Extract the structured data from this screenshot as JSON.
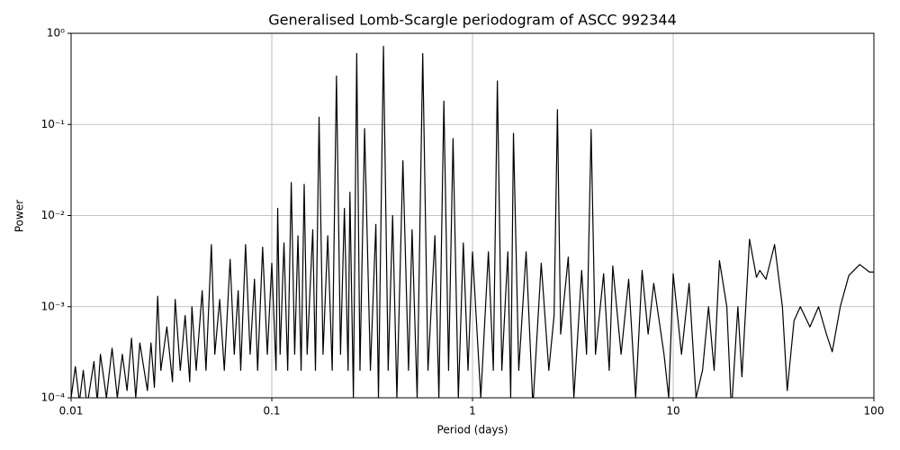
{
  "chart_data": {
    "type": "line",
    "title": "Generalised Lomb-Scargle periodogram of ASCC 992344",
    "xlabel": "Period (days)",
    "ylabel": "Power",
    "xscale": "log",
    "yscale": "log",
    "grid": true,
    "xlim": [
      0.01,
      100
    ],
    "ylim": [
      0.0001,
      1
    ],
    "xticks": [
      0.01,
      0.1,
      1,
      10,
      100
    ],
    "yticks": [
      {
        "value": 0.0001,
        "label": "10⁻⁴"
      },
      {
        "value": 0.001,
        "label": "10⁻³"
      },
      {
        "value": 0.01,
        "label": "10⁻²"
      },
      {
        "value": 0.1,
        "label": "10⁻¹"
      },
      {
        "value": 1,
        "label": "10⁰"
      }
    ],
    "series": [
      {
        "color": "#000000",
        "x": [
          0.01,
          0.0105,
          0.011,
          0.0115,
          0.012,
          0.013,
          0.0135,
          0.014,
          0.015,
          0.016,
          0.017,
          0.018,
          0.019,
          0.02,
          0.021,
          0.022,
          0.024,
          0.025,
          0.026,
          0.027,
          0.028,
          0.03,
          0.032,
          0.033,
          0.035,
          0.037,
          0.039,
          0.04,
          0.042,
          0.045,
          0.047,
          0.05,
          0.052,
          0.055,
          0.058,
          0.062,
          0.065,
          0.068,
          0.07,
          0.074,
          0.078,
          0.082,
          0.085,
          0.09,
          0.095,
          0.1,
          0.105,
          0.107,
          0.11,
          0.115,
          0.12,
          0.125,
          0.13,
          0.135,
          0.14,
          0.145,
          0.15,
          0.16,
          0.165,
          0.172,
          0.18,
          0.19,
          0.2,
          0.21,
          0.22,
          0.23,
          0.24,
          0.245,
          0.255,
          0.265,
          0.275,
          0.29,
          0.31,
          0.33,
          0.34,
          0.36,
          0.38,
          0.4,
          0.42,
          0.45,
          0.48,
          0.5,
          0.53,
          0.565,
          0.6,
          0.65,
          0.68,
          0.72,
          0.76,
          0.8,
          0.85,
          0.9,
          0.95,
          1,
          1.1,
          1.2,
          1.27,
          1.33,
          1.4,
          1.5,
          1.55,
          1.6,
          1.7,
          1.85,
          2,
          2.2,
          2.4,
          2.55,
          2.65,
          2.75,
          3,
          3.2,
          3.5,
          3.7,
          3.9,
          4.1,
          4.5,
          4.8,
          5,
          5.5,
          6,
          6.5,
          7,
          7.5,
          8,
          9,
          9.5,
          10,
          11,
          12,
          13,
          14,
          15,
          16,
          17,
          18.5,
          19.5,
          21,
          22,
          24,
          26,
          27,
          29,
          32,
          35,
          37,
          40,
          43,
          48,
          53,
          58,
          62,
          68,
          75,
          85,
          95,
          100
        ],
        "values": [
          0.0001,
          0.00022,
          9e-05,
          0.0002,
          8e-05,
          0.00025,
          9e-05,
          0.0003,
          0.0001,
          0.00035,
          0.0001,
          0.0003,
          0.00012,
          0.00045,
          0.0001,
          0.0004,
          0.00012,
          0.0004,
          0.00013,
          0.0013,
          0.0002,
          0.0006,
          0.00015,
          0.0012,
          0.0002,
          0.0008,
          0.00015,
          0.001,
          0.0002,
          0.0015,
          0.0002,
          0.0048,
          0.0003,
          0.0012,
          0.0002,
          0.0033,
          0.0003,
          0.0015,
          0.0002,
          0.0048,
          0.0003,
          0.002,
          0.0002,
          0.0045,
          0.0003,
          0.003,
          0.0002,
          0.012,
          0.0003,
          0.005,
          0.0002,
          0.023,
          0.0003,
          0.006,
          0.0002,
          0.022,
          0.0003,
          0.007,
          0.0002,
          0.12,
          0.0003,
          0.006,
          0.0002,
          0.34,
          0.0003,
          0.012,
          0.0002,
          0.018,
          0.0001,
          0.6,
          0.0002,
          0.09,
          0.0002,
          0.008,
          0.0001,
          0.72,
          0.0002,
          0.01,
          0.0001,
          0.04,
          0.0002,
          0.007,
          0.0001,
          0.6,
          0.0002,
          0.006,
          0.0001,
          0.18,
          0.0002,
          0.07,
          0.0001,
          0.005,
          0.0002,
          0.004,
          0.0001,
          0.004,
          0.0002,
          0.3,
          0.0002,
          0.004,
          0.0001,
          0.08,
          0.0002,
          0.004,
          8e-05,
          0.003,
          0.0002,
          0.0008,
          0.145,
          0.0005,
          0.0035,
          0.0001,
          0.0025,
          0.0003,
          0.088,
          0.0003,
          0.0023,
          0.0002,
          0.0028,
          0.0003,
          0.002,
          0.0001,
          0.0025,
          0.0005,
          0.0018,
          0.0003,
          0.0001,
          0.0023,
          0.0003,
          0.0018,
          0.0001,
          0.0002,
          0.001,
          0.0002,
          0.0032,
          0.001,
          7e-05,
          0.001,
          0.00017,
          0.0055,
          0.0021,
          0.0025,
          0.002,
          0.0048,
          0.001,
          0.00012,
          0.0007,
          0.001,
          0.0006,
          0.001,
          0.0005,
          0.00032,
          0.001,
          0.0022,
          0.0029,
          0.0024,
          0.0024
        ]
      }
    ]
  }
}
